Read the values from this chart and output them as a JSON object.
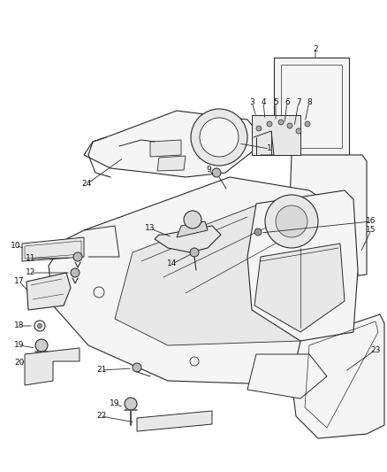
{
  "bg_color": "#ffffff",
  "line_color": "#2a2a2a",
  "figsize": [
    4.38,
    5.33
  ],
  "dpi": 100,
  "parts_fill": "#f5f5f5",
  "parts_fill2": "#e8e8e8",
  "parts_fill3": "#d8d8d8"
}
